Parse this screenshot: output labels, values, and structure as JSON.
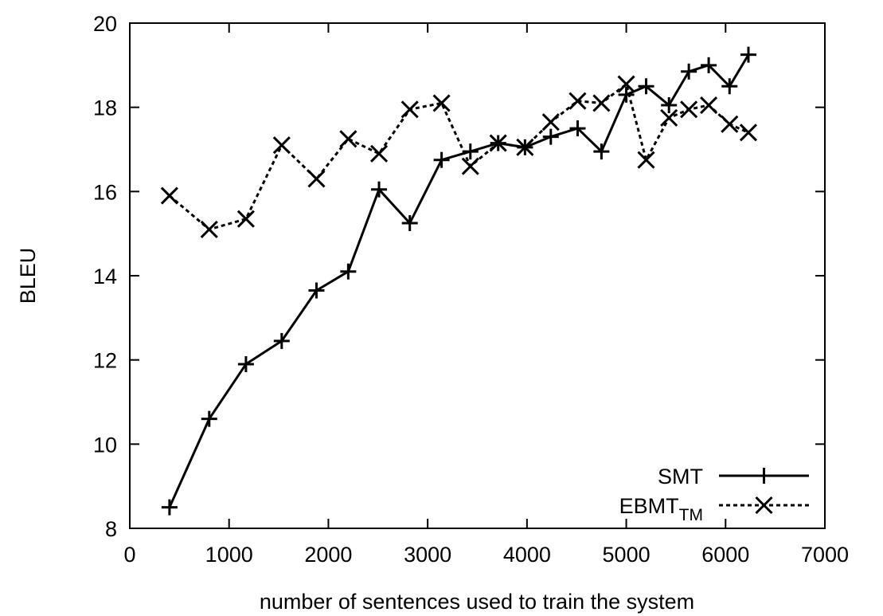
{
  "chart_data": {
    "type": "line",
    "xlabel": "number of sentences used to train the system",
    "ylabel": "BLEU",
    "xlim": [
      0,
      7000
    ],
    "ylim": [
      8,
      20
    ],
    "xticks": [
      "0",
      "1000",
      "2000",
      "3000",
      "4000",
      "5000",
      "6000",
      "7000"
    ],
    "yticks": [
      "8",
      "10",
      "12",
      "14",
      "16",
      "18",
      "20"
    ],
    "grid": false,
    "legend_position": "bottom-right",
    "series": [
      {
        "name": "SMT",
        "label_main": "SMT",
        "label_sub": "",
        "marker": "plus",
        "line": "solid",
        "color": "#000000",
        "x": [
          400,
          800,
          1170,
          1530,
          1880,
          2200,
          2510,
          2820,
          3140,
          3430,
          3710,
          3980,
          4240,
          4510,
          4750,
          5000,
          5200,
          5430,
          5630,
          5830,
          6040,
          6230
        ],
        "y": [
          8.5,
          10.6,
          11.9,
          12.45,
          13.65,
          14.1,
          16.05,
          15.25,
          16.75,
          16.95,
          17.15,
          17.05,
          17.3,
          17.5,
          16.95,
          18.3,
          18.5,
          18.05,
          18.85,
          19.0,
          18.5,
          19.25
        ]
      },
      {
        "name": "EBMT_TM",
        "label_main": "EBMT",
        "label_sub": "TM",
        "marker": "cross",
        "line": "dashed",
        "color": "#000000",
        "x": [
          400,
          800,
          1170,
          1530,
          1880,
          2200,
          2510,
          2820,
          3140,
          3430,
          3710,
          3980,
          4240,
          4510,
          4750,
          5000,
          5200,
          5430,
          5630,
          5830,
          6040,
          6230
        ],
        "y": [
          15.9,
          15.1,
          15.35,
          17.1,
          16.3,
          17.25,
          16.9,
          17.95,
          18.1,
          16.6,
          17.15,
          17.05,
          17.65,
          18.15,
          18.1,
          18.55,
          16.75,
          17.75,
          17.95,
          18.05,
          17.6,
          17.4
        ]
      }
    ]
  }
}
